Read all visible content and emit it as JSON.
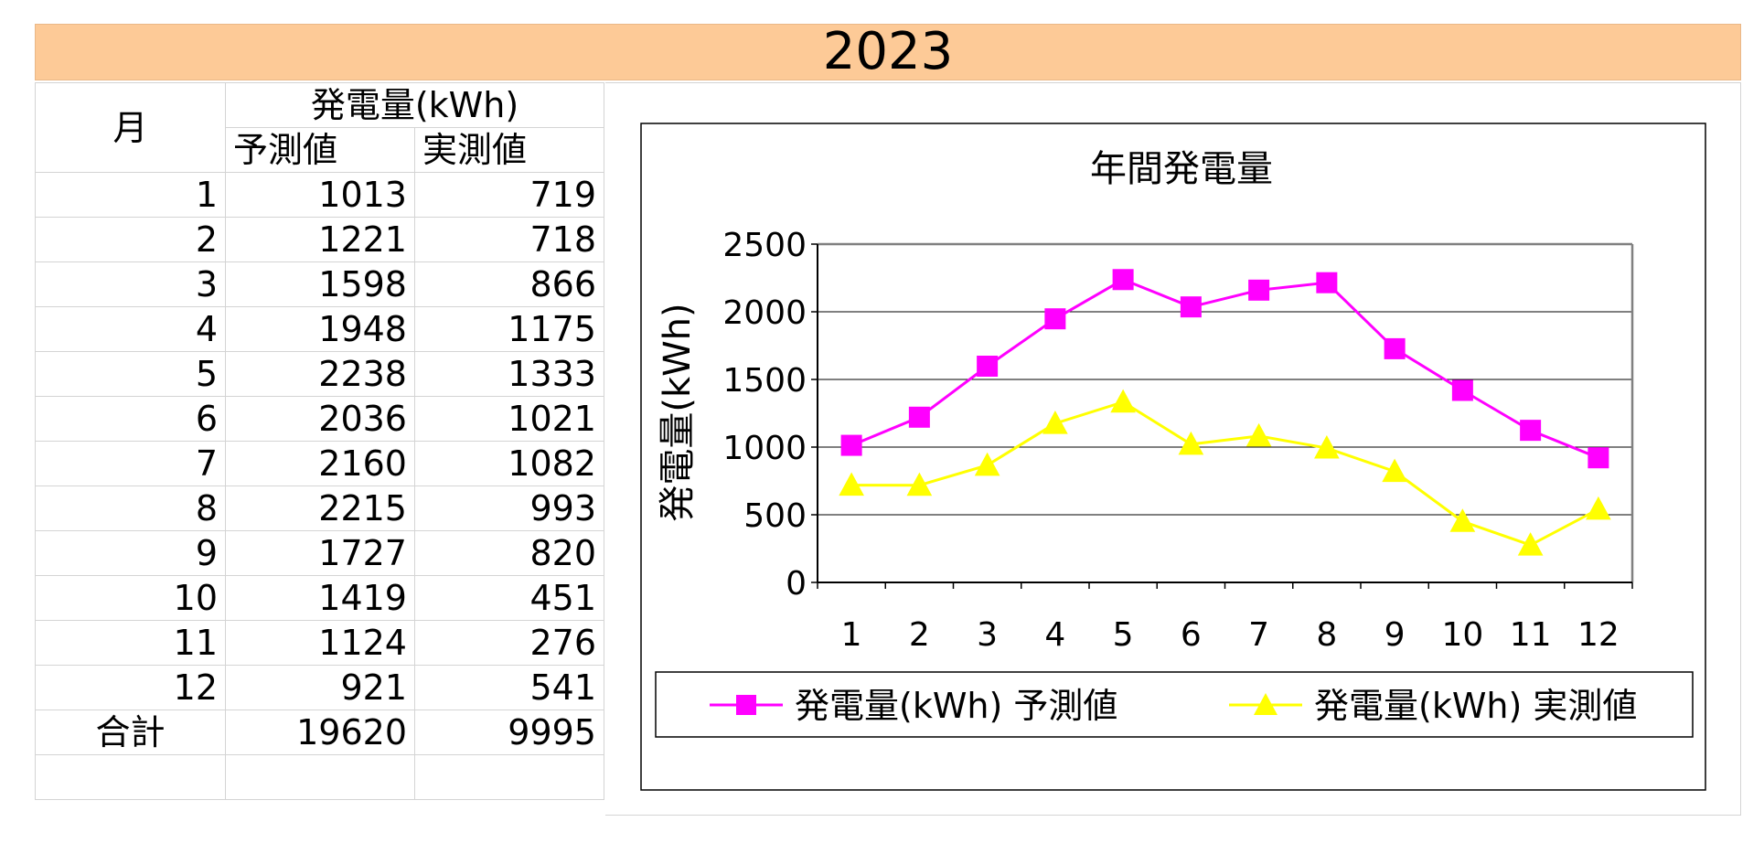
{
  "header": {
    "year": "2023"
  },
  "table": {
    "month_header": "月",
    "group_header": "発電量(kWh)",
    "col_pred": "予測値",
    "col_actual": "実測値",
    "rows": [
      {
        "month": "1",
        "pred": "1013",
        "actual": "719"
      },
      {
        "month": "2",
        "pred": "1221",
        "actual": "718"
      },
      {
        "month": "3",
        "pred": "1598",
        "actual": "866"
      },
      {
        "month": "4",
        "pred": "1948",
        "actual": "1175"
      },
      {
        "month": "5",
        "pred": "2238",
        "actual": "1333"
      },
      {
        "month": "6",
        "pred": "2036",
        "actual": "1021"
      },
      {
        "month": "7",
        "pred": "2160",
        "actual": "1082"
      },
      {
        "month": "8",
        "pred": "2215",
        "actual": "993"
      },
      {
        "month": "9",
        "pred": "1727",
        "actual": "820"
      },
      {
        "month": "10",
        "pred": "1419",
        "actual": "451"
      },
      {
        "month": "11",
        "pred": "1124",
        "actual": "276"
      },
      {
        "month": "12",
        "pred": "921",
        "actual": "541"
      }
    ],
    "total_label": "合計",
    "total_pred": "19620",
    "total_actual": "9995"
  },
  "chart_data": {
    "type": "line",
    "title": "年間発電量",
    "xlabel": "",
    "ylabel": "発電量(kWh)",
    "x": [
      "1",
      "2",
      "3",
      "4",
      "5",
      "6",
      "7",
      "8",
      "9",
      "10",
      "11",
      "12"
    ],
    "ylim": [
      0,
      2500
    ],
    "yticks": [
      0,
      500,
      1000,
      1500,
      2000,
      2500
    ],
    "grid": true,
    "legend_position": "bottom",
    "series": [
      {
        "name": "発電量(kWh) 予測値",
        "color": "#ff00ff",
        "marker": "square",
        "values": [
          1013,
          1221,
          1598,
          1948,
          2238,
          2036,
          2160,
          2215,
          1727,
          1419,
          1124,
          921
        ]
      },
      {
        "name": "発電量(kWh) 実測値",
        "color": "#ffff00",
        "marker": "triangle",
        "values": [
          719,
          718,
          866,
          1175,
          1333,
          1021,
          1082,
          993,
          820,
          451,
          276,
          541
        ]
      }
    ]
  }
}
